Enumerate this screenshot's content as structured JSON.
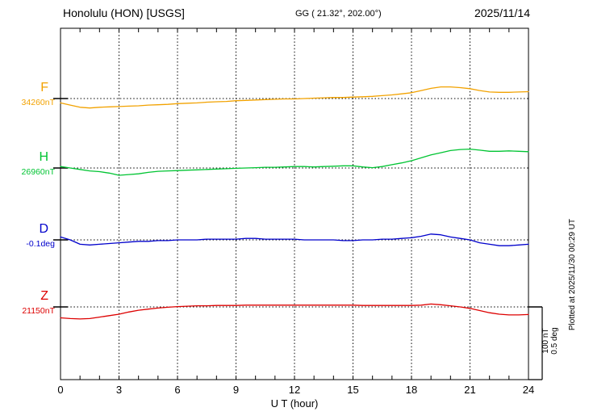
{
  "header": {
    "station": "Honolulu (HON)  [USGS]",
    "coords": "GG ( 21.32°, 202.00°)",
    "date": "2025/11/14"
  },
  "axis": {
    "xlabel": "U T (hour)"
  },
  "scalebar": {
    "nt_label": "100 nT",
    "deg_label": "0.5 deg"
  },
  "footer": {
    "plotted": "Plotted at 2025/11/30 00:29 UT"
  },
  "chart_data": {
    "type": "line",
    "title": "Honolulu (HON) [USGS] magnetogram 2025/11/14",
    "xlabel": "U T (hour)",
    "ylabel": "",
    "x_range": [
      0,
      24
    ],
    "x_ticks": [
      0,
      3,
      6,
      9,
      12,
      15,
      18,
      21,
      24
    ],
    "grid": "dotted vertical lines every 3 hours; dotted horizontal baseline per channel",
    "legend_position": "left channel labels",
    "scale": {
      "nT_per_div": 100,
      "deg_per_div": 0.5
    },
    "x": [
      0,
      0.5,
      1,
      1.5,
      2,
      2.5,
      3,
      3.5,
      4,
      4.5,
      5,
      5.5,
      6,
      6.5,
      7,
      7.5,
      8,
      8.5,
      9,
      9.5,
      10,
      10.5,
      11,
      11.5,
      12,
      12.5,
      13,
      13.5,
      14,
      14.5,
      15,
      15.5,
      16,
      16.5,
      17,
      17.5,
      18,
      18.5,
      19,
      19.5,
      20,
      20.5,
      21,
      21.5,
      22,
      22.5,
      23,
      23.5,
      24
    ],
    "series": [
      {
        "name": "F",
        "color": "#f2a200",
        "unit": "nT",
        "baseline_label": "34260nT",
        "baseline_value": 34260,
        "offsets": [
          -6,
          -9,
          -12,
          -13,
          -12,
          -11.5,
          -11,
          -10.5,
          -10,
          -9,
          -8.5,
          -8,
          -7,
          -6.5,
          -6,
          -5,
          -4.5,
          -4,
          -3,
          -2.5,
          -2,
          -1.5,
          -1,
          -0.5,
          -0.5,
          0,
          0.5,
          1,
          1.5,
          1.5,
          2,
          2.5,
          3,
          4,
          5,
          6.5,
          8,
          11,
          14,
          16,
          16,
          15,
          13.5,
          11,
          9,
          8.5,
          8.5,
          9,
          9.5
        ]
      },
      {
        "name": "H",
        "color": "#00c432",
        "unit": "nT",
        "baseline_label": "26960nT",
        "baseline_value": 26960,
        "offsets": [
          2,
          0,
          -2,
          -4,
          -5,
          -7,
          -10,
          -9,
          -8,
          -6,
          -4.5,
          -4,
          -3.5,
          -3,
          -2.5,
          -2,
          -1.5,
          -1,
          -0.5,
          0,
          0.5,
          1,
          1,
          1.5,
          2,
          2,
          1.5,
          2,
          2.5,
          3,
          3,
          1.5,
          0.5,
          2,
          4.5,
          7,
          10,
          14,
          18,
          21,
          24,
          25.5,
          26,
          24.5,
          23,
          23,
          23.5,
          23,
          22.5
        ]
      },
      {
        "name": "D",
        "color": "#0000cc",
        "unit": "deg",
        "baseline_label": "-0.1deg",
        "baseline_value": -0.1,
        "offsets": [
          0.02,
          0,
          -0.03,
          -0.035,
          -0.03,
          -0.025,
          -0.02,
          -0.015,
          -0.01,
          -0.01,
          -0.005,
          -0.005,
          0,
          0,
          0,
          0.005,
          0.005,
          0.005,
          0.005,
          0.01,
          0.01,
          0.005,
          0.005,
          0.005,
          0.005,
          0,
          0,
          0,
          0,
          -0.005,
          -0.005,
          0,
          0,
          0.005,
          0.005,
          0.01,
          0.015,
          0.025,
          0.04,
          0.035,
          0.02,
          0.01,
          0,
          -0.02,
          -0.03,
          -0.04,
          -0.04,
          -0.035,
          -0.03
        ]
      },
      {
        "name": "Z",
        "color": "#dd0000",
        "unit": "nT",
        "baseline_label": "21150nT",
        "baseline_value": 21150,
        "offsets": [
          -15,
          -16,
          -16.5,
          -16,
          -14,
          -12,
          -10,
          -7,
          -4.5,
          -3,
          -1.5,
          -0.5,
          0.5,
          1,
          1.5,
          1.5,
          2,
          2,
          2,
          2.5,
          2.5,
          2.5,
          2.5,
          2.5,
          2.5,
          2.5,
          2.5,
          2.5,
          2.5,
          2.5,
          2.5,
          2,
          2,
          2,
          2,
          2,
          2,
          2.5,
          4,
          3,
          1.5,
          0,
          -2,
          -5,
          -8,
          -10,
          -11,
          -11,
          -10.5
        ]
      }
    ]
  }
}
